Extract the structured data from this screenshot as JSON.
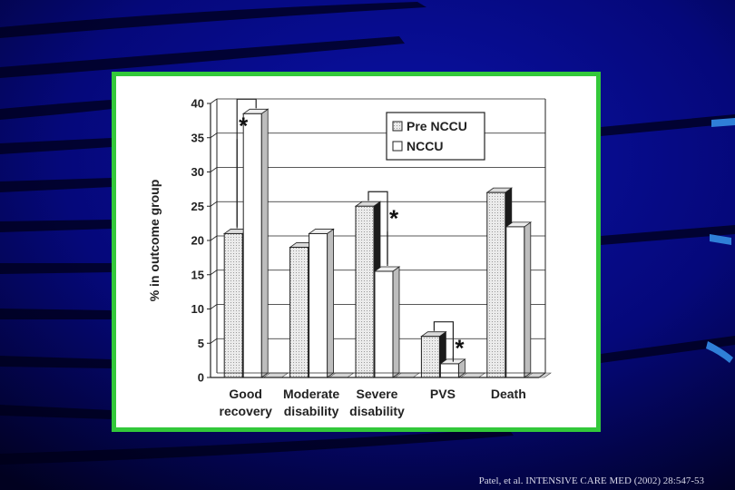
{
  "colors": {
    "background": "#04046e",
    "frame": "#33c83a",
    "accent": "#2f7fd8",
    "citation_text": "#d7d7e8"
  },
  "citation": "Patel, et al. INTENSIVE CARE MED (2002) 28:547-53",
  "chart_data": {
    "type": "bar",
    "title": "",
    "xlabel": "",
    "ylabel": "% in outcome group",
    "ylim": [
      0,
      40
    ],
    "yticks": [
      0,
      5,
      10,
      15,
      20,
      25,
      30,
      35,
      40
    ],
    "grid": true,
    "legend_position": "top-right",
    "categories": [
      [
        "Good",
        "recovery"
      ],
      [
        "Moderate",
        "disability"
      ],
      [
        "Severe",
        "disability"
      ],
      [
        "PVS"
      ],
      [
        "Death"
      ]
    ],
    "series": [
      {
        "name": "Pre NCCU",
        "values": [
          21,
          19,
          25,
          6,
          27
        ]
      },
      {
        "name": "NCCU",
        "values": [
          38.5,
          21,
          15.5,
          2,
          22
        ]
      }
    ],
    "significance": [
      {
        "category_index": 0,
        "label": "*"
      },
      {
        "category_index": 2,
        "label": "*"
      },
      {
        "category_index": 3,
        "label": "*"
      }
    ]
  }
}
